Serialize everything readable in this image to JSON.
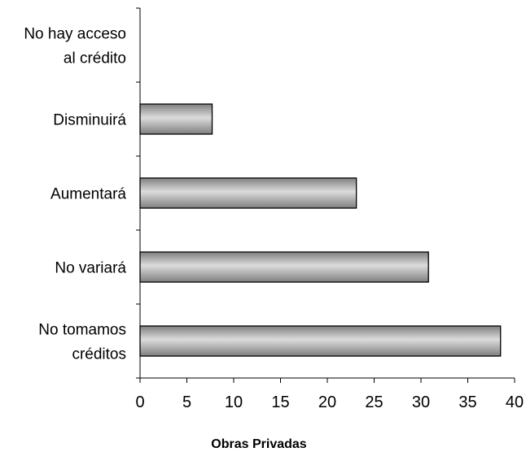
{
  "chart_data": {
    "type": "bar",
    "orientation": "horizontal",
    "categories": [
      [
        "No hay acceso",
        "al crédito"
      ],
      [
        "Disminuirá"
      ],
      [
        "Aumentará"
      ],
      [
        "No variará"
      ],
      [
        "No tomamos",
        "créditos"
      ]
    ],
    "values": [
      0,
      7.7,
      23.1,
      30.8,
      38.5
    ],
    "xlabel": "Obras Privadas",
    "xlim": [
      0,
      40
    ],
    "xticks": [
      0,
      5,
      10,
      15,
      20,
      25,
      30,
      35,
      40
    ],
    "grid": false,
    "legend": "none",
    "bar_color": "#7f7f7f",
    "bar_highlight": "#dcdcdc"
  }
}
